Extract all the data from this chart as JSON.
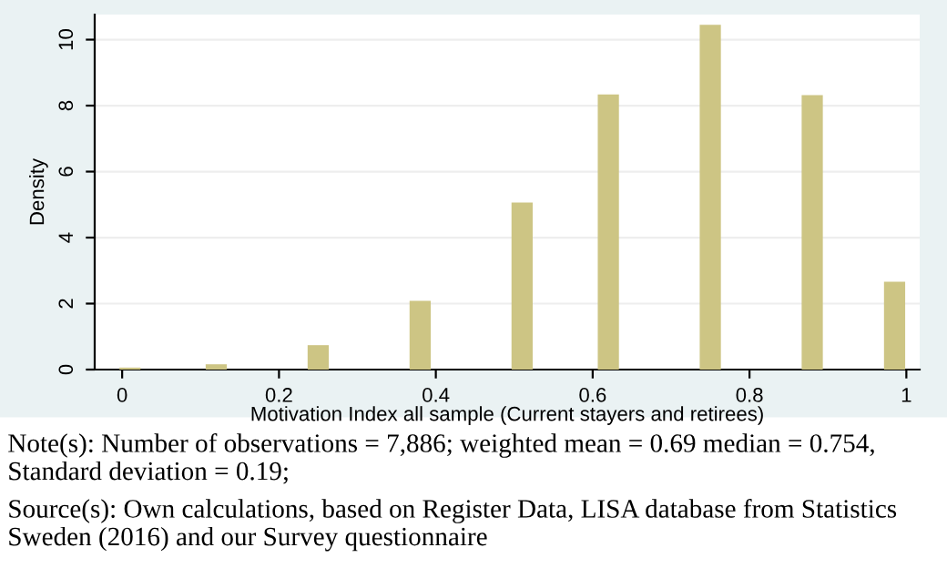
{
  "chart_data": {
    "type": "bar",
    "xlabel": "Motivation Index all sample (Current stayers and retirees)",
    "ylabel": "Density",
    "x": [
      0.01,
      0.12,
      0.25,
      0.38,
      0.51,
      0.62,
      0.75,
      0.88,
      0.985
    ],
    "values": [
      0.06,
      0.16,
      0.74,
      2.08,
      5.06,
      8.34,
      10.45,
      8.32,
      2.66
    ],
    "color": "#cdc584",
    "xlim": [
      -0.035,
      1.017
    ],
    "xticks": [
      0,
      0.2,
      0.4,
      0.6,
      0.8,
      1
    ],
    "ylim": [
      0,
      10.76
    ],
    "yticks": [
      0,
      2,
      4,
      6,
      8,
      10
    ],
    "grid": "y",
    "annotations": [
      "Note(s): Number of observations = 7,886; weighted mean = 0.69 median = 0.754, Standard deviation = 0.19;",
      "Source(s): Own calculations, based on Register Data, LISA database from Statistics Sweden (2016) and our Survey questionnaire"
    ]
  }
}
